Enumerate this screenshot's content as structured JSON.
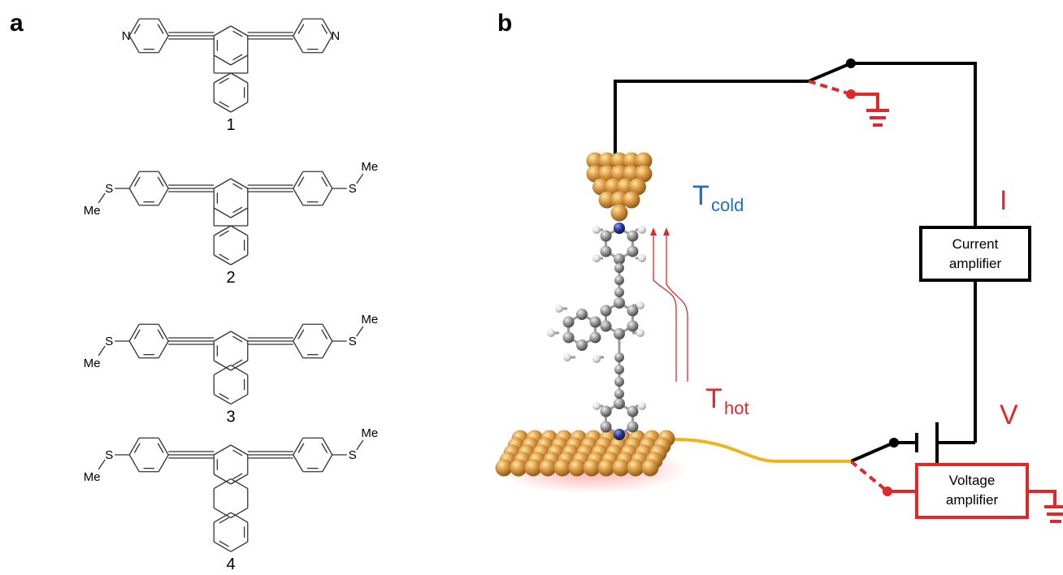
{
  "panel_a": {
    "letter": "a",
    "compounds": [
      {
        "number": "1",
        "left_group": "N",
        "right_group": "N"
      },
      {
        "number": "2",
        "left_group": "S",
        "right_group": "S",
        "methyl": "Me"
      },
      {
        "number": "3",
        "left_group": "S",
        "right_group": "S",
        "methyl": "Me"
      },
      {
        "number": "4",
        "left_group": "S",
        "right_group": "S",
        "methyl": "Me"
      }
    ]
  },
  "panel_b": {
    "letter": "b",
    "t_cold_main": "T",
    "t_cold_sub": "cold",
    "t_hot_main": "T",
    "t_hot_sub": "hot",
    "current_label": "I",
    "voltage_label": "V",
    "current_amp_line1": "Current",
    "current_amp_line2": "amplifier",
    "voltage_amp_line1": "Voltage",
    "voltage_amp_line2": "amplifier",
    "colors": {
      "circuit_black": "#000000",
      "circuit_red": "#e0282a",
      "gold_wire": "#f2b21c",
      "gold_atom": "#e3a24a",
      "carbon": "#8a8a8a",
      "nitrogen": "#2a3a8f",
      "cold_blue": "#1e6fc0"
    }
  }
}
